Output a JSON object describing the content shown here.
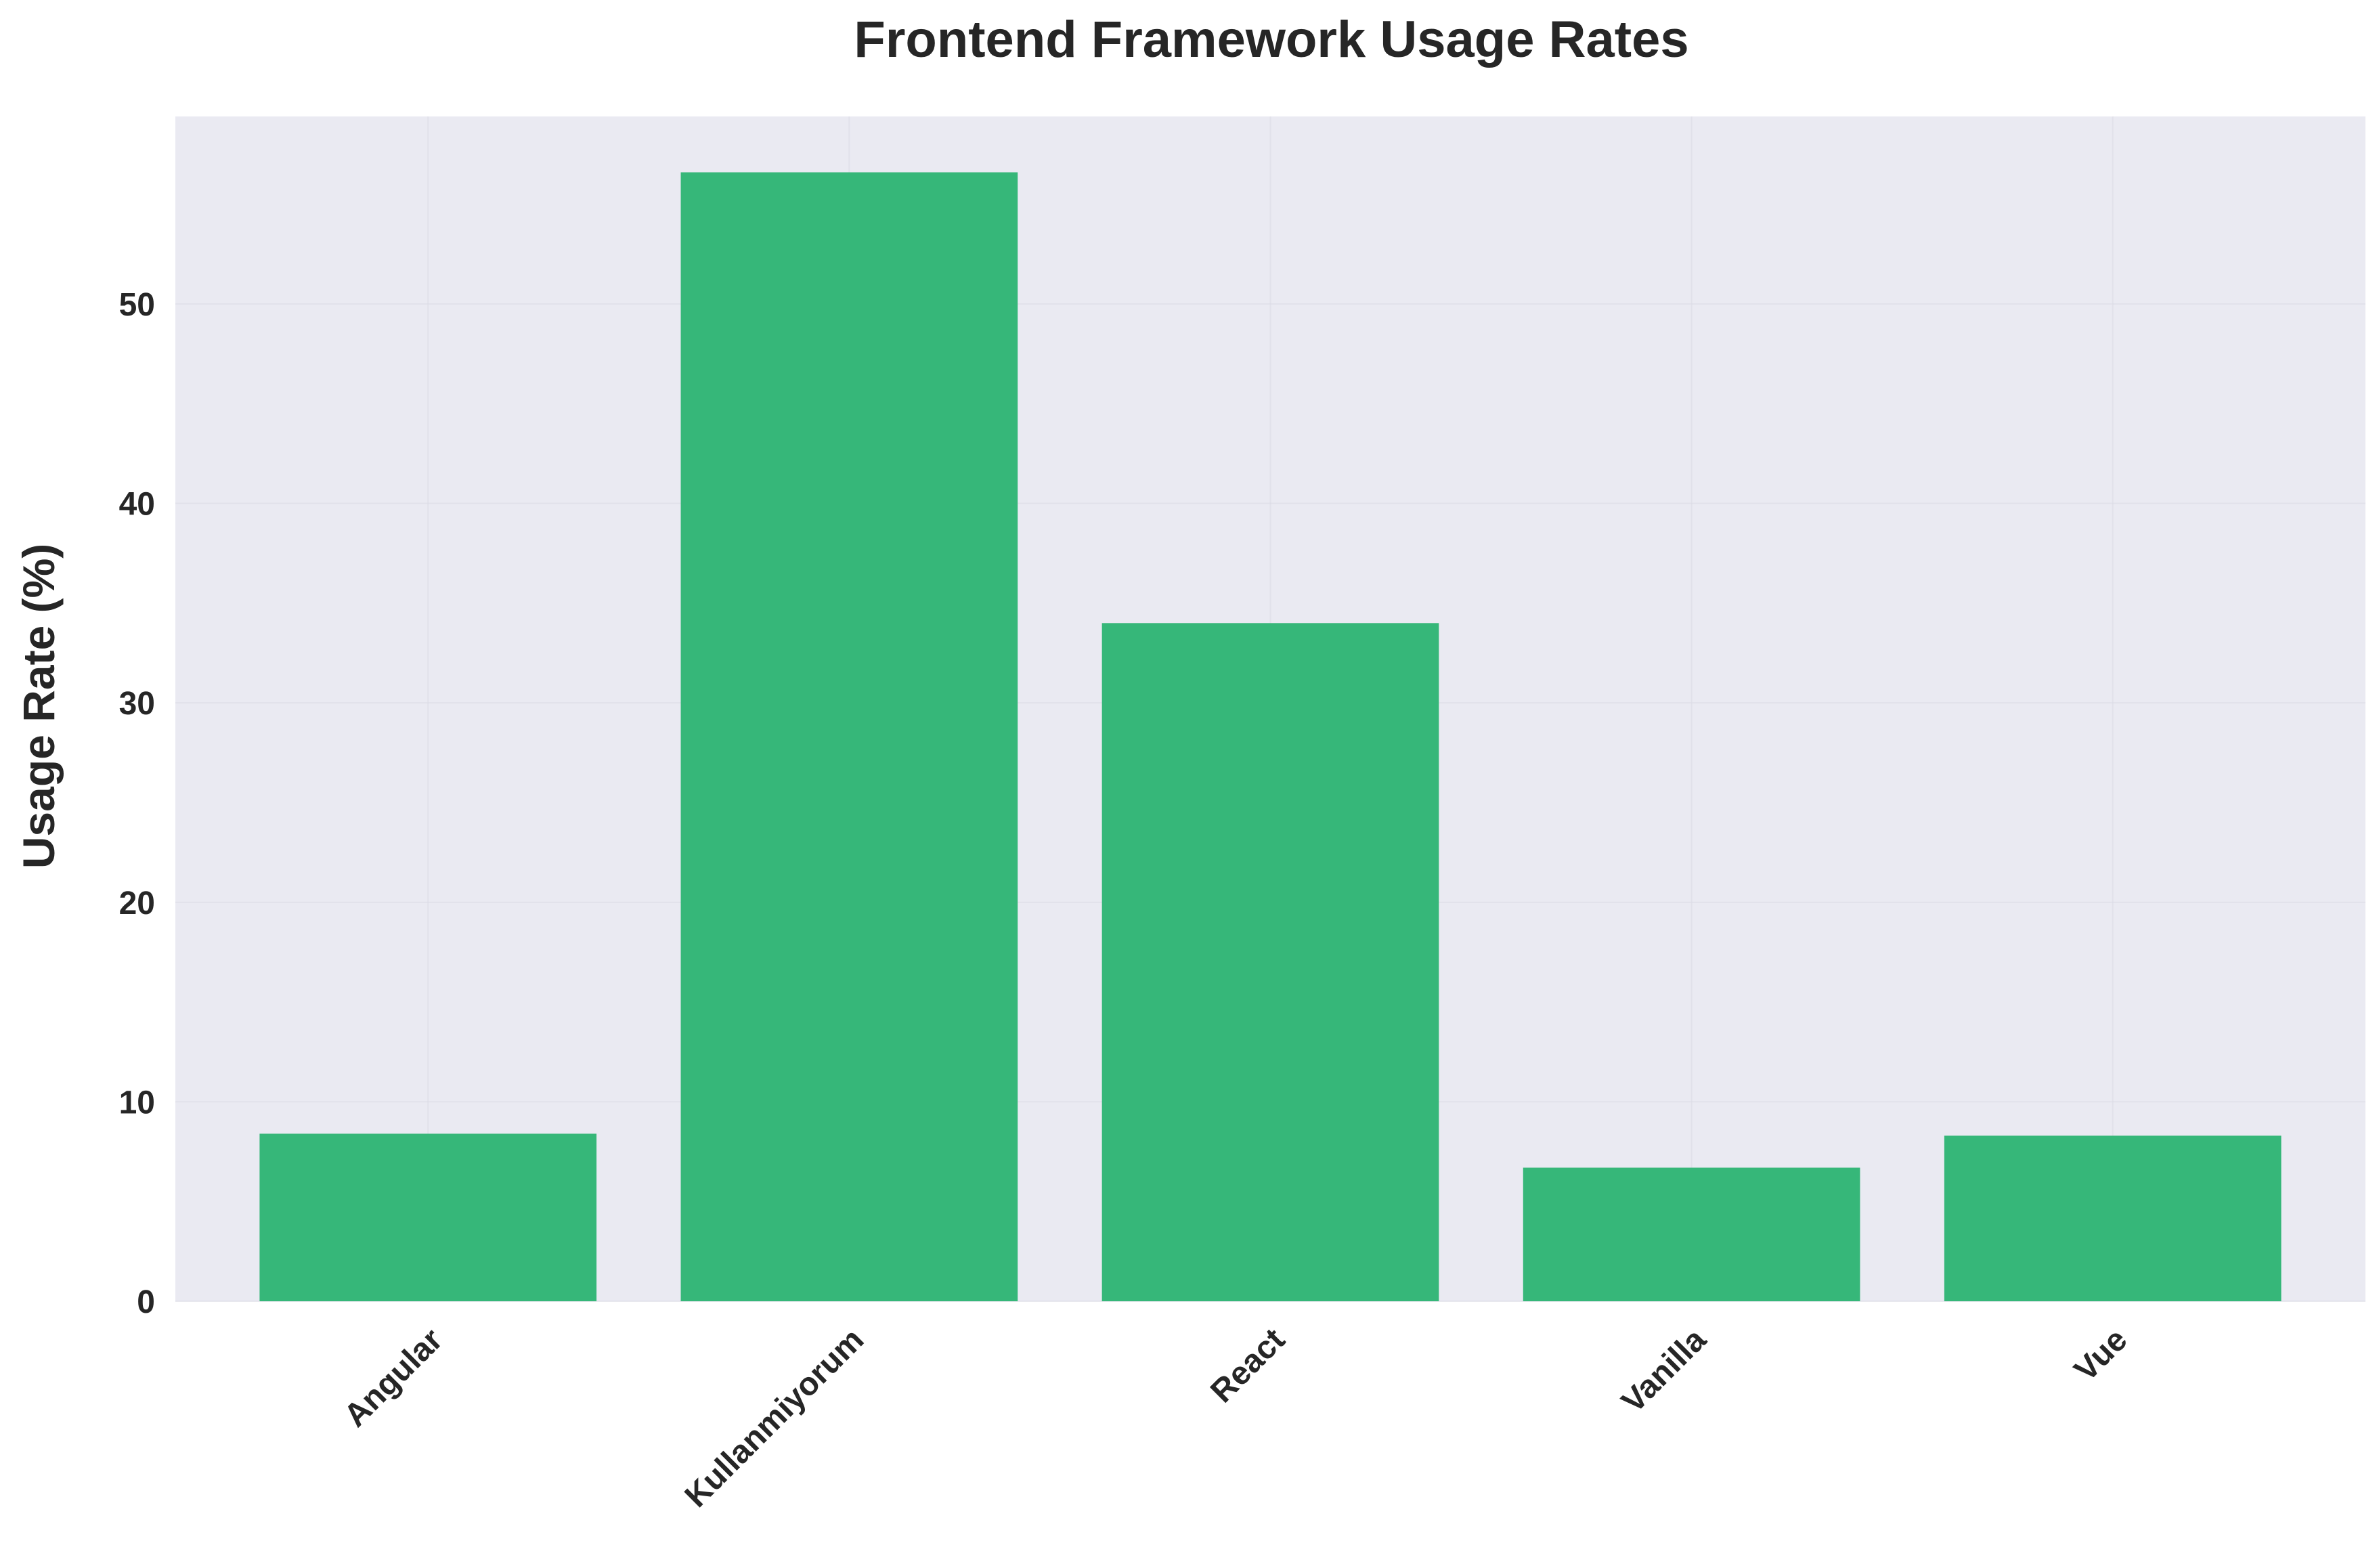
{
  "chart_data": {
    "type": "bar",
    "title": "Frontend Framework Usage Rates",
    "xlabel": "",
    "ylabel": "Usage Rate (%)",
    "categories": [
      "Angular",
      "Kullanmiyorum",
      "React",
      "Vanilla",
      "Vue"
    ],
    "values": [
      8.4,
      56.6,
      34.0,
      6.7,
      8.3
    ],
    "ylim": [
      0,
      59.4
    ],
    "yticks": [
      "0",
      "10",
      "20",
      "30",
      "40",
      "50"
    ],
    "grid": true,
    "bar_color": "#36b779",
    "plot_background": "#eaeaf2"
  }
}
